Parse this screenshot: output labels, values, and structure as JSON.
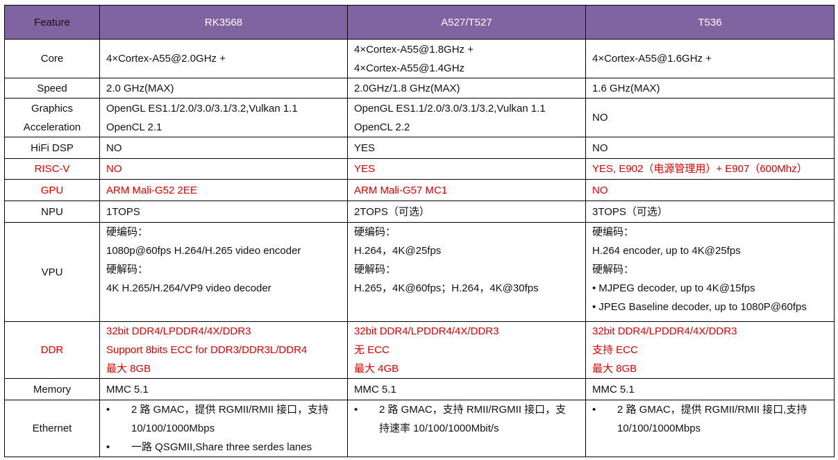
{
  "colors": {
    "header_bg": "#8064a2",
    "header_text": "#ffffff",
    "highlight_red": "#e00000"
  },
  "header": [
    "Feature",
    "RK3568",
    "A527/T527",
    "T536"
  ],
  "rows": [
    {
      "feature": [
        "Core"
      ],
      "red": false,
      "height": 56,
      "cells": [
        {
          "lines": [
            "4×Cortex-A55@2.0GHz +"
          ]
        },
        {
          "lines": [
            "4×Cortex-A55@1.8GHz +",
            "4×Cortex-A55@1.4GHz"
          ]
        },
        {
          "lines": [
            "4×Cortex-A55@1.6GHz +"
          ]
        }
      ]
    },
    {
      "feature": [
        "Speed"
      ],
      "red": false,
      "height": 29,
      "cells": [
        {
          "lines": [
            "2.0 GHz(MAX)"
          ]
        },
        {
          "lines": [
            "2.0GHz/1.8 GHz(MAX)"
          ]
        },
        {
          "lines": [
            "1.6 GHz(MAX)"
          ]
        }
      ]
    },
    {
      "feature": [
        "Graphics",
        "Acceleration"
      ],
      "red": false,
      "height": 56,
      "cells": [
        {
          "lines": [
            "OpenGL ES1.1/2.0/3.0/3.1/3.2,Vulkan 1.1",
            "OpenCL 2.1"
          ]
        },
        {
          "lines": [
            "OpenGL ES1.1/2.0/3.0/3.1/3.2,Vulkan 1.1",
            "OpenCL 2.2"
          ]
        },
        {
          "lines": [
            "NO"
          ]
        }
      ]
    },
    {
      "feature": [
        "HiFi DSP"
      ],
      "red": false,
      "height": 31,
      "cells": [
        {
          "lines": [
            "NO"
          ]
        },
        {
          "lines": [
            "YES"
          ]
        },
        {
          "lines": [
            "NO"
          ]
        }
      ]
    },
    {
      "feature": [
        "RISC-V"
      ],
      "red": true,
      "height": 30,
      "cells": [
        {
          "lines": [
            "NO"
          ]
        },
        {
          "lines": [
            "YES"
          ]
        },
        {
          "lines": [
            "YES, E902（电源管理用）+ E907（600Mhz）"
          ]
        }
      ]
    },
    {
      "feature": [
        "GPU"
      ],
      "red": true,
      "height": 31,
      "cells": [
        {
          "lines": [
            "ARM Mali-G52 2EE"
          ]
        },
        {
          "lines": [
            "ARM Mali-G57 MC1"
          ]
        },
        {
          "lines": [
            "NO"
          ]
        }
      ]
    },
    {
      "feature": [
        "NPU"
      ],
      "red": false,
      "height": 31,
      "cells": [
        {
          "lines": [
            "1TOPS"
          ]
        },
        {
          "lines": [
            "2TOPS（可选）"
          ]
        },
        {
          "lines": [
            "3TOPS（可选）"
          ]
        }
      ]
    },
    {
      "feature": [
        "VPU"
      ],
      "red": false,
      "height": 143,
      "align": "top",
      "cells": [
        {
          "lines": [
            "硬编码：",
            "1080p@60fps H.264/H.265 video encoder",
            "硬解码：",
            "4K H.265/H.264/VP9 video decoder"
          ]
        },
        {
          "lines": [
            "硬编码：",
            "H.264，4K@25fps",
            "硬解码：",
            "H.265，4K@60fps；H.264，4K@30fps"
          ]
        },
        {
          "lines": [
            "硬编码：",
            "H.264 encoder, up to 4K@25fps",
            "硬解码："
          ],
          "small_bullets": [
            "MJPEG decoder, up to 4K@15fps",
            "JPEG Baseline decoder, up to 1080P@60fps"
          ]
        }
      ]
    },
    {
      "feature": [
        "DDR"
      ],
      "red": true,
      "height": 82,
      "cells": [
        {
          "lines": [
            "32bit DDR4/LPDDR4/4X/DDR3",
            "Support 8bits ECC for DDR3/DDR3L/DDR4",
            "最大 8GB"
          ]
        },
        {
          "lines": [
            "32bit DDR4/LPDDR4/4X/DDR3",
            "无 ECC",
            "最大 4GB"
          ]
        },
        {
          "lines": [
            "32bit DDR4/LPDDR4/4X/DDR3",
            "支持 ECC",
            "最大 8GB"
          ]
        }
      ]
    },
    {
      "feature": [
        "Memory"
      ],
      "red": false,
      "height": 31,
      "cells": [
        {
          "lines": [
            "MMC 5.1"
          ]
        },
        {
          "lines": [
            "MMC 5.1"
          ]
        },
        {
          "lines": [
            "MMC 5.1"
          ]
        }
      ]
    },
    {
      "feature": [
        "Ethernet"
      ],
      "red": false,
      "height": 81,
      "align": "top",
      "cells": [
        {
          "bullets": [
            {
              "text": "2 路 GMAC，提供 RGMII/RMII 接口，支持",
              "cont": "10/100/1000Mbps"
            },
            {
              "text": "一路 QSGMII,Share three serdes lanes"
            }
          ]
        },
        {
          "bullets": [
            {
              "text": "2 路 GMAC，支持 RMII/RGMII 接口，支",
              "cont": "持速率 10/100/1000Mbit/s"
            }
          ]
        },
        {
          "bullets": [
            {
              "text": "2 路 GMAC，提供 RGMII/RMII 接口,支持",
              "cont": "10/100/1000Mbps"
            }
          ]
        }
      ]
    }
  ]
}
